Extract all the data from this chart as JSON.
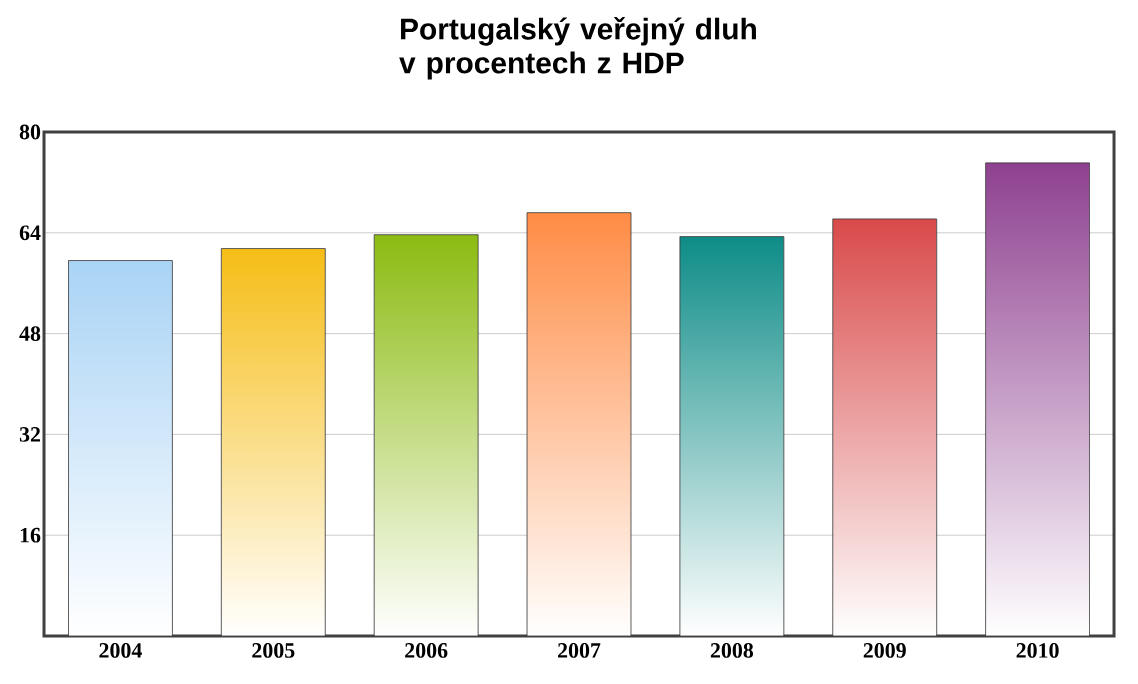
{
  "chart_data": {
    "type": "bar",
    "title": "Portugalský veřejný dluh\nv procentech z HDP",
    "categories": [
      "2004",
      "2005",
      "2006",
      "2007",
      "2008",
      "2009",
      "2010"
    ],
    "values": [
      59.6,
      61.5,
      63.7,
      67.2,
      63.4,
      66.2,
      75.1
    ],
    "colors": [
      "#a9d3f5",
      "#f6bd16",
      "#8cbb12",
      "#ff8c45",
      "#0e8c87",
      "#d94a4a",
      "#8e4190"
    ],
    "ylim": [
      0,
      80
    ],
    "yticks": [
      16,
      32,
      48,
      64,
      80
    ],
    "grid": "y"
  }
}
